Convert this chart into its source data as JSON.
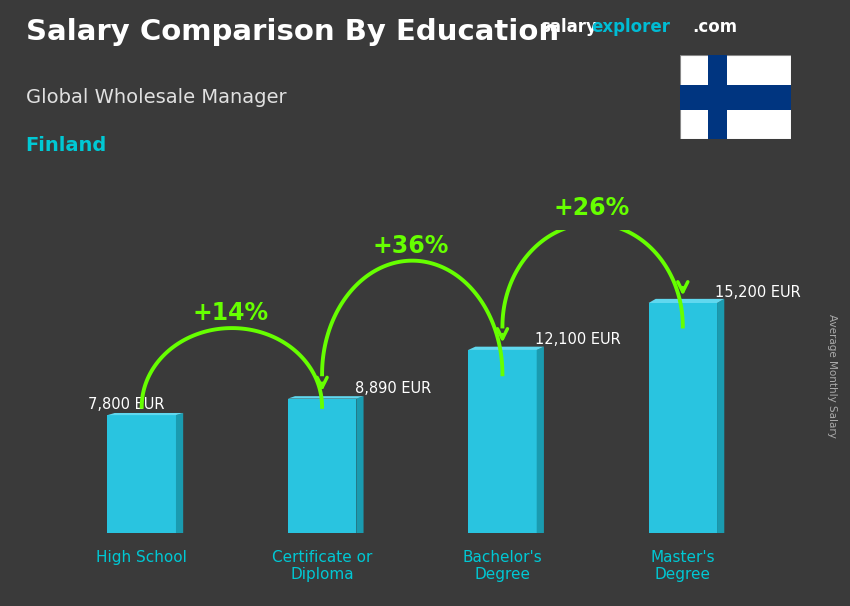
{
  "title1": "Salary Comparison By Education",
  "title2": "Global Wholesale Manager",
  "title3": "Finland",
  "watermark_salary": "salary",
  "watermark_explorer": "explorer",
  "watermark_com": ".com",
  "ylabel": "Average Monthly Salary",
  "categories": [
    "High School",
    "Certificate or\nDiploma",
    "Bachelor's\nDegree",
    "Master's\nDegree"
  ],
  "values": [
    7800,
    8890,
    12100,
    15200
  ],
  "value_labels": [
    "7,800 EUR",
    "8,890 EUR",
    "12,100 EUR",
    "15,200 EUR"
  ],
  "value_label_offsets": [
    -1,
    1,
    1,
    1
  ],
  "pct_labels": [
    "+14%",
    "+36%",
    "+26%"
  ],
  "bar_color": "#29c4e0",
  "bar_color_dark": "#1a9bb0",
  "bar_color_top": "#60d8ef",
  "pct_color": "#66ff00",
  "value_label_color": "#ffffff",
  "title1_color": "#ffffff",
  "title2_color": "#e0e0e0",
  "title3_color": "#00c8d4",
  "watermark_salary_color": "#ffffff",
  "watermark_explorer_color": "#00bcd4",
  "watermark_com_color": "#ffffff",
  "xtick_color": "#00c8d4",
  "bg_color": "#3a3a3a",
  "ylim": [
    0,
    20000
  ],
  "bar_width": 0.38,
  "flag_cross_color": "#003580",
  "right_label_color": "#aaaaaa"
}
